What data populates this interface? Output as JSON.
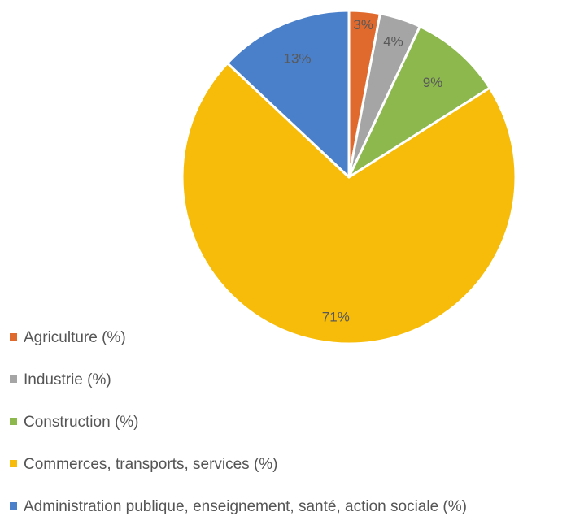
{
  "chart_data": {
    "type": "pie",
    "title": "",
    "legend_placement": "bottom-left",
    "slices": [
      {
        "label": "Agriculture (%)",
        "value": 3,
        "display": "3%",
        "color": "#E06A2E"
      },
      {
        "label": "Industrie (%)",
        "value": 4,
        "display": "4%",
        "color": "#A5A5A5"
      },
      {
        "label": "Construction (%)",
        "value": 9,
        "display": "9%",
        "color": "#8CB84E"
      },
      {
        "label": "Commerces, transports, services (%)",
        "value": 71,
        "display": "71%",
        "color": "#F7BC0A"
      },
      {
        "label": "Administration publique, enseignement, santé, action sociale (%)",
        "value": 13,
        "display": "13%",
        "color": "#4A7FC9"
      }
    ]
  }
}
